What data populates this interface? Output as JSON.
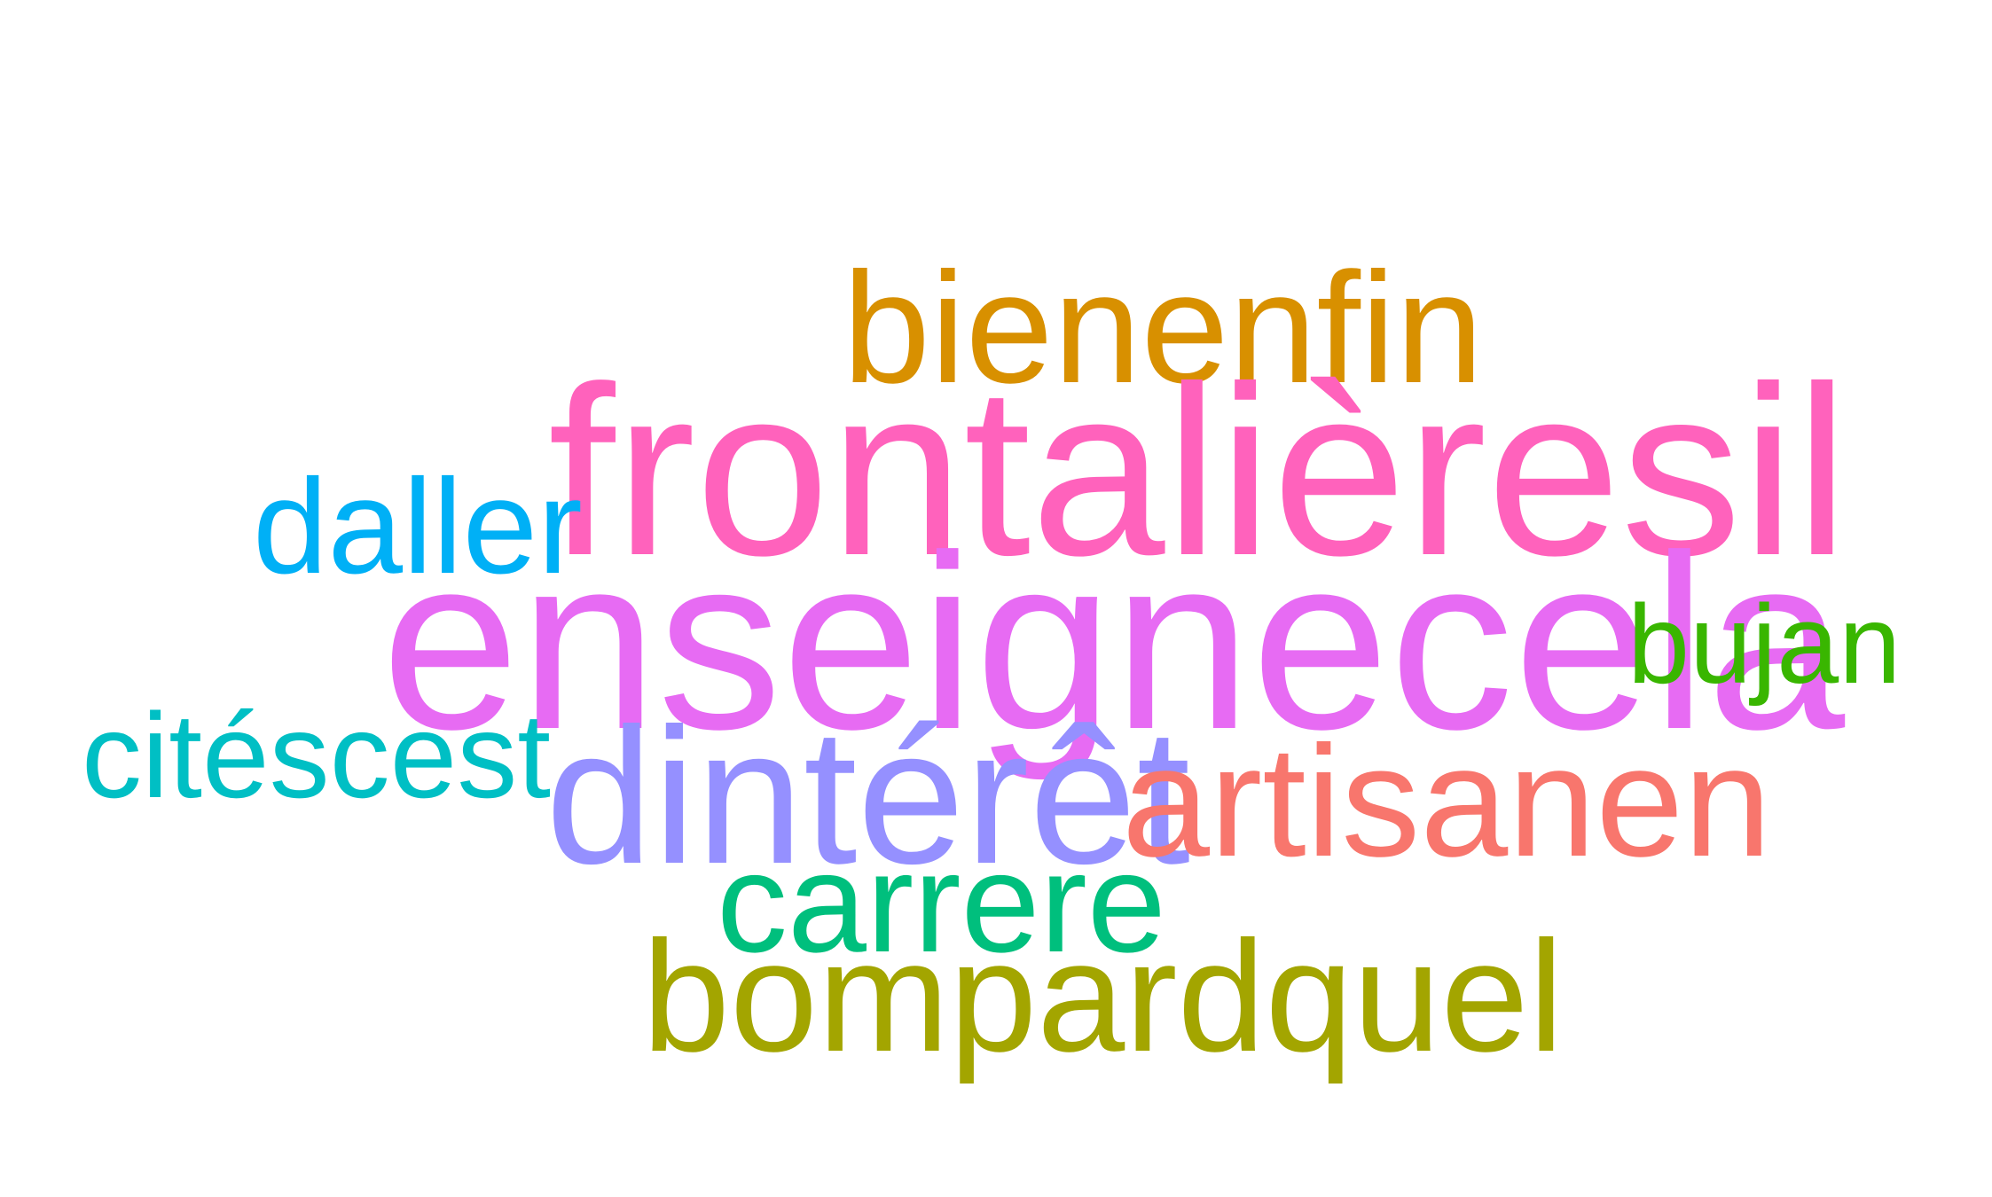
{
  "words": [
    {
      "text": "bienenfin",
      "color": "#D89000"
    },
    {
      "text": "frontalièresil",
      "color": "#FF62BC"
    },
    {
      "text": "daller",
      "color": "#00B0F6"
    },
    {
      "text": "enseignecela",
      "color": "#E76BF3"
    },
    {
      "text": "bujan",
      "color": "#39B600"
    },
    {
      "text": "citéscest",
      "color": "#00BFC4"
    },
    {
      "text": "dintérêt",
      "color": "#9590FF"
    },
    {
      "text": "artisanen",
      "color": "#F8766D"
    },
    {
      "text": "carrere",
      "color": "#00BF7D"
    },
    {
      "text": "bompardquel",
      "color": "#A3A500"
    }
  ]
}
